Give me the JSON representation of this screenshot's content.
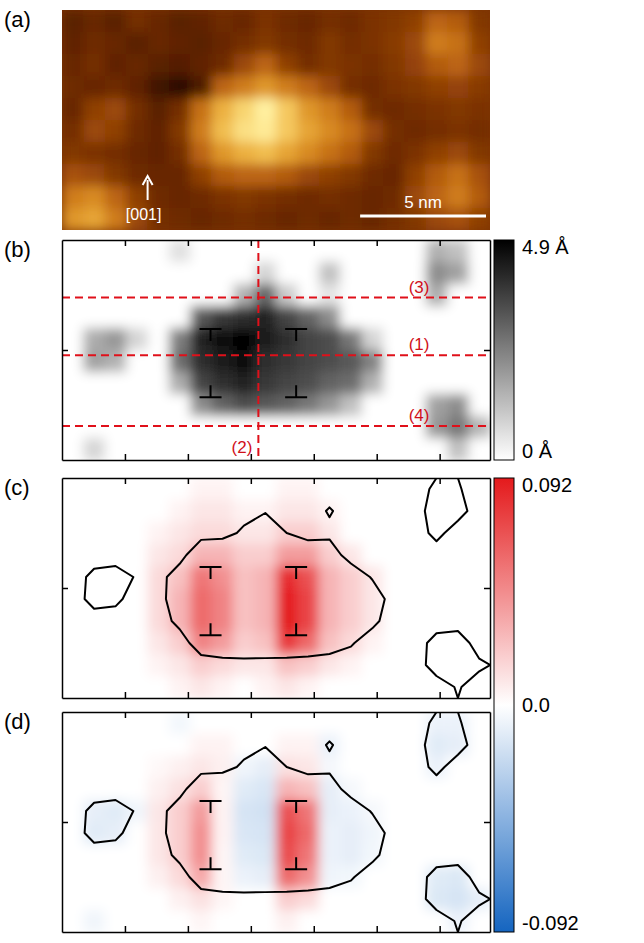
{
  "chart_data": [
    {
      "type": "heatmap",
      "title": "(a)",
      "xlim": [
        0,
        17
      ],
      "ylim": [
        0,
        8.4
      ],
      "tick_labels": false,
      "cells": [
        [
          1.0,
          1.2,
          1.0,
          1.4,
          1.2,
          1.0,
          1.1,
          1.3,
          1.2,
          1.5,
          1.3,
          1.2,
          1.4,
          1.3,
          1.5,
          1.6,
          1.8,
          2.6,
          2.4,
          1.6
        ],
        [
          1.1,
          1.3,
          1.2,
          1.0,
          1.2,
          1.1,
          1.0,
          1.2,
          1.4,
          1.6,
          1.4,
          1.3,
          1.6,
          1.4,
          1.5,
          1.7,
          2.0,
          3.0,
          2.8,
          1.8
        ],
        [
          1.2,
          1.4,
          1.1,
          1.2,
          1.0,
          0.9,
          1.1,
          1.3,
          2.0,
          2.6,
          1.8,
          1.4,
          1.6,
          1.5,
          1.4,
          1.6,
          1.9,
          2.4,
          2.6,
          2.0
        ],
        [
          1.3,
          1.2,
          1.3,
          1.1,
          0.6,
          0.3,
          0.8,
          2.6,
          3.0,
          3.4,
          3.0,
          2.6,
          2.0,
          1.4,
          1.3,
          1.5,
          1.6,
          1.8,
          1.9,
          1.7
        ],
        [
          1.2,
          1.8,
          2.0,
          1.4,
          1.0,
          1.4,
          2.8,
          3.8,
          4.4,
          4.9,
          4.2,
          3.4,
          3.0,
          2.4,
          1.4,
          1.3,
          1.4,
          1.5,
          1.6,
          1.5
        ],
        [
          1.4,
          2.0,
          1.8,
          1.3,
          1.1,
          1.6,
          3.0,
          4.0,
          4.6,
          4.8,
          4.2,
          3.6,
          3.2,
          2.8,
          2.0,
          1.4,
          1.3,
          1.4,
          1.5,
          1.4
        ],
        [
          1.6,
          1.5,
          1.4,
          1.2,
          1.1,
          1.4,
          2.6,
          3.4,
          3.8,
          4.0,
          3.6,
          3.2,
          2.8,
          2.4,
          1.6,
          1.3,
          1.5,
          1.8,
          2.0,
          1.6
        ],
        [
          2.2,
          2.0,
          1.6,
          1.3,
          1.2,
          1.2,
          1.8,
          2.4,
          2.6,
          2.6,
          2.4,
          2.0,
          1.8,
          1.6,
          1.3,
          1.2,
          1.8,
          2.4,
          2.8,
          2.2
        ],
        [
          3.0,
          3.2,
          2.6,
          1.8,
          1.3,
          1.2,
          1.3,
          1.5,
          1.6,
          1.5,
          1.4,
          1.3,
          1.4,
          1.3,
          1.2,
          1.3,
          2.0,
          2.6,
          3.0,
          2.4
        ],
        [
          3.4,
          3.6,
          3.0,
          2.0,
          1.4,
          1.3,
          1.2,
          1.3,
          1.4,
          1.3,
          1.2,
          1.3,
          1.2,
          1.3,
          1.2,
          1.4,
          1.6,
          2.0,
          2.2,
          1.8
        ]
      ],
      "annotations": [
        {
          "text": "[001]"
        }
      ],
      "scale_bar": {
        "length": 5,
        "label": "5 nm"
      }
    },
    {
      "type": "heatmap",
      "title": "(b)",
      "xlim": [
        0,
        17
      ],
      "ylim": [
        0,
        8.4
      ],
      "tick_labels": false,
      "xticks": [
        2.5,
        5,
        7.5,
        10,
        12.5,
        15
      ],
      "yticks": [
        4.2
      ],
      "cells": [
        [
          0,
          0,
          0,
          0,
          0,
          0.6,
          0,
          0,
          0,
          0,
          0,
          0,
          0,
          0,
          0,
          0,
          0,
          1.5,
          1.2,
          0
        ],
        [
          0,
          0,
          0,
          0,
          0,
          0,
          0,
          0,
          0,
          0.8,
          0,
          0,
          1.2,
          0,
          0,
          0,
          0,
          2.2,
          1.8,
          0
        ],
        [
          0,
          0,
          0,
          0,
          0,
          0,
          0,
          0,
          1.5,
          3.0,
          1.0,
          0,
          0.5,
          0,
          0,
          0,
          0,
          1.6,
          0,
          0
        ],
        [
          0,
          0,
          0,
          0,
          0,
          0,
          3.2,
          3.8,
          4.0,
          4.2,
          3.6,
          3.0,
          2.2,
          0,
          0,
          0,
          0,
          0,
          0,
          0
        ],
        [
          0,
          1.6,
          2.0,
          0.8,
          0,
          2.5,
          4.2,
          4.6,
          4.9,
          4.4,
          4.0,
          3.6,
          3.4,
          2.6,
          0.8,
          0,
          0,
          0,
          0,
          0
        ],
        [
          0,
          1.8,
          1.5,
          0,
          0,
          2.8,
          4.0,
          4.4,
          4.6,
          4.0,
          3.8,
          3.6,
          3.4,
          3.2,
          2.4,
          0,
          0,
          0,
          0,
          0
        ],
        [
          0,
          0,
          0,
          0,
          0,
          1.6,
          3.6,
          4.0,
          4.2,
          3.8,
          3.6,
          3.4,
          3.0,
          2.8,
          1.5,
          0,
          0,
          0,
          0,
          0
        ],
        [
          0,
          0,
          0,
          0,
          0,
          0,
          2.2,
          3.0,
          3.4,
          3.2,
          3.0,
          2.6,
          2.0,
          1.2,
          0,
          0,
          0,
          1.8,
          2.2,
          0
        ],
        [
          0,
          0,
          0,
          0,
          0,
          0,
          0,
          0,
          0,
          0,
          0,
          0,
          0,
          0,
          0,
          0,
          0,
          2.0,
          2.6,
          1.4
        ],
        [
          0,
          0.8,
          0,
          0,
          0,
          0,
          0,
          0,
          0,
          0,
          0,
          0,
          0,
          0,
          0,
          0,
          0,
          0,
          1.2,
          0
        ]
      ],
      "colorbar": {
        "range": [
          0,
          4.9
        ],
        "ticks": [
          {
            "value": 4.9,
            "label": "4.9 Å"
          },
          {
            "value": 0,
            "label": "0 Å"
          }
        ]
      },
      "lines": [
        {
          "label": "(1)",
          "y": 4.0
        },
        {
          "label": "(2)",
          "x": 7.8
        },
        {
          "label": "(3)",
          "y": 6.2
        },
        {
          "label": "(4)",
          "y": 1.3
        }
      ],
      "dislocations": [
        {
          "x": 5.9,
          "y": 5.0
        },
        {
          "x": 9.3,
          "y": 5.0
        },
        {
          "x": 5.9,
          "y": 2.4
        },
        {
          "x": 9.3,
          "y": 2.4
        }
      ]
    },
    {
      "type": "heatmap",
      "title": "(c)",
      "xlim": [
        0,
        17
      ],
      "ylim": [
        0,
        8.4
      ],
      "tick_labels": false,
      "xticks": [
        2.5,
        5,
        7.5,
        10,
        12.5,
        15
      ],
      "yticks": [
        4.2
      ],
      "cells": [
        [
          0,
          0,
          0,
          0,
          0,
          0,
          0.005,
          0.005,
          0,
          0,
          0.005,
          0.005,
          0,
          0,
          0,
          0,
          0,
          0,
          0,
          0
        ],
        [
          0,
          0,
          0,
          0,
          0,
          0.005,
          0.01,
          0.01,
          0.005,
          0.005,
          0.01,
          0.01,
          0.005,
          0,
          0,
          0,
          0,
          0,
          0,
          0
        ],
        [
          0,
          0,
          0,
          0,
          0.005,
          0.01,
          0.015,
          0.015,
          0.01,
          0.01,
          0.02,
          0.02,
          0.01,
          0,
          0,
          0,
          0,
          0,
          0,
          0
        ],
        [
          0,
          0,
          0,
          0,
          0.01,
          0.015,
          0.03,
          0.03,
          0.02,
          0.02,
          0.04,
          0.04,
          0.02,
          0.01,
          0,
          0,
          0,
          0,
          0,
          0
        ],
        [
          0,
          0,
          0,
          0,
          0.015,
          0.025,
          0.055,
          0.045,
          0.025,
          0.03,
          0.085,
          0.07,
          0.03,
          0.02,
          0.01,
          0,
          0,
          0,
          0,
          0
        ],
        [
          0,
          0,
          0,
          0,
          0.015,
          0.03,
          0.06,
          0.05,
          0.025,
          0.03,
          0.09,
          0.075,
          0.03,
          0.02,
          0.01,
          0,
          0,
          0,
          0,
          0
        ],
        [
          0,
          0,
          0,
          0,
          0.015,
          0.03,
          0.06,
          0.05,
          0.025,
          0.03,
          0.092,
          0.075,
          0.03,
          0.02,
          0.01,
          0,
          0,
          0,
          0,
          0
        ],
        [
          0,
          0,
          0,
          0,
          0.01,
          0.02,
          0.05,
          0.04,
          0.02,
          0.025,
          0.08,
          0.06,
          0.025,
          0.015,
          0.005,
          0,
          0,
          0,
          0,
          0
        ],
        [
          0,
          0,
          0,
          0,
          0.005,
          0.01,
          0.02,
          0.015,
          0.01,
          0.01,
          0.025,
          0.02,
          0.01,
          0.005,
          0,
          0,
          0,
          0,
          0,
          0
        ],
        [
          0,
          0,
          0,
          0,
          0,
          0.005,
          0.01,
          0.005,
          0,
          0.005,
          0.01,
          0.005,
          0,
          0,
          0,
          0,
          0,
          0,
          0,
          0
        ]
      ],
      "colorbar": {
        "range": [
          -0.092,
          0.092
        ],
        "ticks": [
          0.092,
          {
            "value": 0,
            "label": "0.0"
          },
          -0.092
        ]
      },
      "outline_level": 1.0,
      "dislocations": [
        {
          "x": 5.9,
          "y": 5.0
        },
        {
          "x": 9.3,
          "y": 5.0
        },
        {
          "x": 5.9,
          "y": 2.4
        },
        {
          "x": 9.3,
          "y": 2.4
        }
      ]
    },
    {
      "type": "heatmap",
      "title": "(d)",
      "xlim": [
        0,
        17
      ],
      "ylim": [
        0,
        8.4
      ],
      "tick_labels": false,
      "xticks": [
        2.5,
        5,
        7.5,
        10,
        12.5,
        15
      ],
      "yticks": [
        4.2
      ],
      "cells": [
        [
          0,
          0,
          0,
          0,
          0,
          -0.005,
          0,
          0,
          0,
          0,
          0,
          0,
          0,
          0,
          0,
          0,
          0,
          -0.008,
          -0.008,
          0
        ],
        [
          0,
          0,
          0,
          0,
          0,
          0,
          0.005,
          0.005,
          0,
          0,
          0.005,
          0.005,
          -0.008,
          0,
          0,
          0,
          0,
          -0.012,
          -0.01,
          0
        ],
        [
          0,
          0,
          0,
          0,
          0.003,
          0.006,
          0.01,
          0.006,
          -0.006,
          -0.01,
          0.012,
          0.01,
          -0.004,
          0,
          0,
          0,
          0,
          -0.008,
          0,
          0
        ],
        [
          0,
          0,
          0,
          0,
          0.006,
          0.012,
          0.02,
          0.004,
          -0.012,
          -0.015,
          0.03,
          0.025,
          -0.01,
          -0.004,
          0,
          0,
          0,
          0,
          0,
          0
        ],
        [
          0,
          -0.01,
          -0.012,
          -0.006,
          0.01,
          0.02,
          0.04,
          0.005,
          -0.016,
          -0.018,
          0.07,
          0.055,
          -0.01,
          -0.008,
          -0.004,
          0,
          0,
          0,
          0,
          0
        ],
        [
          0,
          -0.012,
          -0.01,
          0,
          0.01,
          0.02,
          0.045,
          0.005,
          -0.015,
          -0.016,
          0.075,
          0.06,
          -0.008,
          -0.01,
          -0.006,
          0,
          0,
          0,
          0,
          0
        ],
        [
          0,
          0,
          0,
          0,
          0.01,
          0.02,
          0.045,
          0.004,
          -0.012,
          -0.014,
          0.072,
          0.055,
          -0.008,
          -0.01,
          -0.005,
          0,
          0,
          0,
          0,
          0
        ],
        [
          0,
          0,
          0,
          0,
          0.006,
          0.015,
          0.035,
          0.004,
          -0.008,
          -0.01,
          0.06,
          0.045,
          -0.006,
          -0.005,
          0,
          0,
          0,
          -0.012,
          -0.014,
          0
        ],
        [
          0,
          0,
          0,
          0,
          0,
          0.006,
          0.012,
          0.004,
          0,
          0,
          0.02,
          0.015,
          0,
          0,
          0,
          0,
          0,
          -0.014,
          -0.016,
          -0.01
        ],
        [
          0,
          -0.006,
          0,
          0,
          0,
          0,
          0.004,
          0,
          0,
          0,
          0.006,
          0,
          0,
          0,
          0,
          0,
          0,
          0,
          -0.008,
          0
        ]
      ],
      "outline_level": 1.0,
      "dislocations": [
        {
          "x": 5.9,
          "y": 5.0
        },
        {
          "x": 9.3,
          "y": 5.0
        },
        {
          "x": 5.9,
          "y": 2.4
        },
        {
          "x": 9.3,
          "y": 2.4
        }
      ]
    }
  ]
}
